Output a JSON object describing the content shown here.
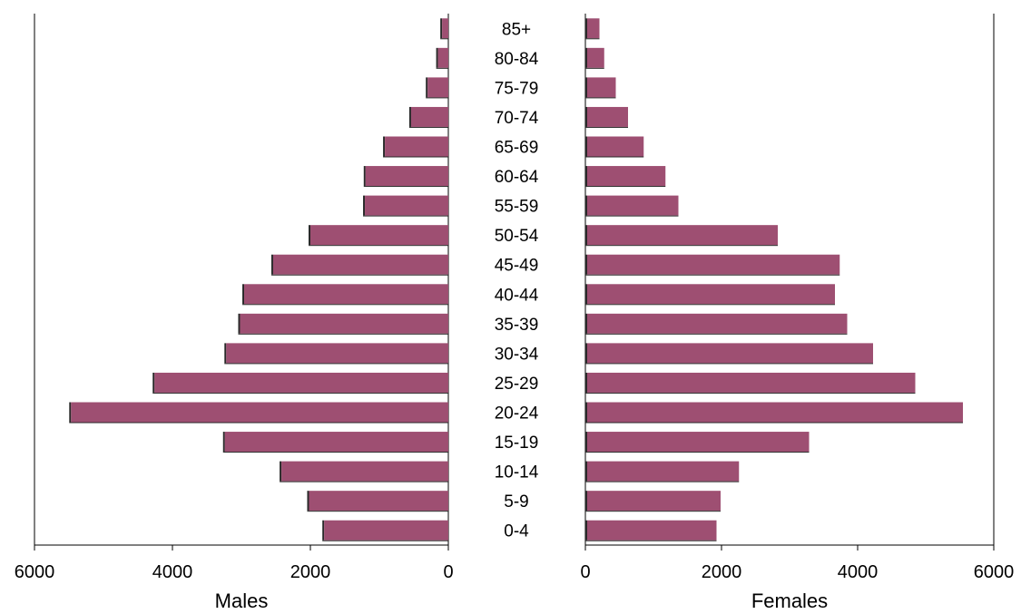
{
  "chart_data": {
    "type": "bar",
    "orientation": "horizontal",
    "title": "",
    "categories": [
      "0-4",
      "5-9",
      "10-14",
      "15-19",
      "20-24",
      "25-29",
      "30-34",
      "35-39",
      "40-44",
      "45-49",
      "50-54",
      "55-59",
      "60-64",
      "65-69",
      "70-74",
      "75-79",
      "80-84",
      "85+"
    ],
    "series": [
      {
        "name": "Males",
        "color": "#9e4f72",
        "values": [
          1800,
          2020,
          2420,
          3240,
          5470,
          4260,
          3220,
          3020,
          2960,
          2540,
          2000,
          1210,
          1200,
          920,
          540,
          300,
          150,
          90
        ]
      },
      {
        "name": "Females",
        "color": "#9e4f72",
        "values": [
          1900,
          1960,
          2230,
          3260,
          5520,
          4820,
          4200,
          3820,
          3640,
          3710,
          2800,
          1340,
          1150,
          830,
          600,
          420,
          250,
          180
        ]
      }
    ],
    "males_axis": {
      "label": "Males",
      "range": [
        6000,
        0
      ],
      "ticks": [
        "6000",
        "4000",
        "2000",
        "0"
      ]
    },
    "females_axis": {
      "label": "Females",
      "range": [
        0,
        6000
      ],
      "ticks": [
        "0",
        "2000",
        "4000",
        "6000"
      ]
    },
    "grid": false,
    "legend": "none"
  }
}
